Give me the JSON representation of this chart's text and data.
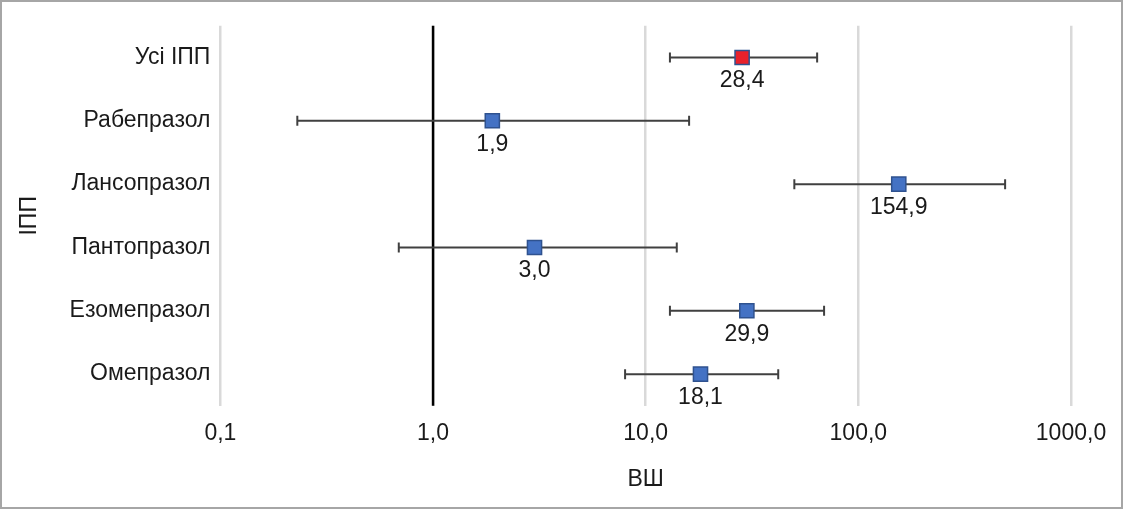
{
  "chart_data": {
    "type": "scatter",
    "orientation": "horizontal",
    "xlabel": "ВШ",
    "ylabel": "ІПП",
    "categories": [
      "Усі ІПП",
      "Рабепразол",
      "Лансопразол",
      "Пантопразол",
      "Езомепразол",
      "Омепразол"
    ],
    "values": [
      28.4,
      1.9,
      154.9,
      3.0,
      29.9,
      18.1
    ],
    "errors": [
      [
        13,
        64
      ],
      [
        0.23,
        16
      ],
      [
        50,
        490
      ],
      [
        0.69,
        14
      ],
      [
        13,
        69
      ],
      [
        8,
        42
      ]
    ],
    "value_labels": [
      "28,4",
      "1,9",
      "154,9",
      "3,0",
      "29,9",
      "18,1"
    ],
    "colors": [
      "#e8212b",
      "#4472c4",
      "#4472c4",
      "#4472c4",
      "#4472c4",
      "#4472c4"
    ],
    "log": "x",
    "xlim": [
      0.1,
      1000
    ],
    "xticks": [
      {
        "value": 0.1,
        "label": "0,1"
      },
      {
        "value": 1,
        "label": "1,0"
      },
      {
        "value": 10,
        "label": "10,0"
      },
      {
        "value": 100,
        "label": "100,0"
      },
      {
        "value": 1000,
        "label": "1000,0"
      }
    ],
    "ref_lines": [
      {
        "axis": "x",
        "value": 1,
        "color": "#000000"
      }
    ],
    "grid": "x",
    "marker": "square"
  }
}
